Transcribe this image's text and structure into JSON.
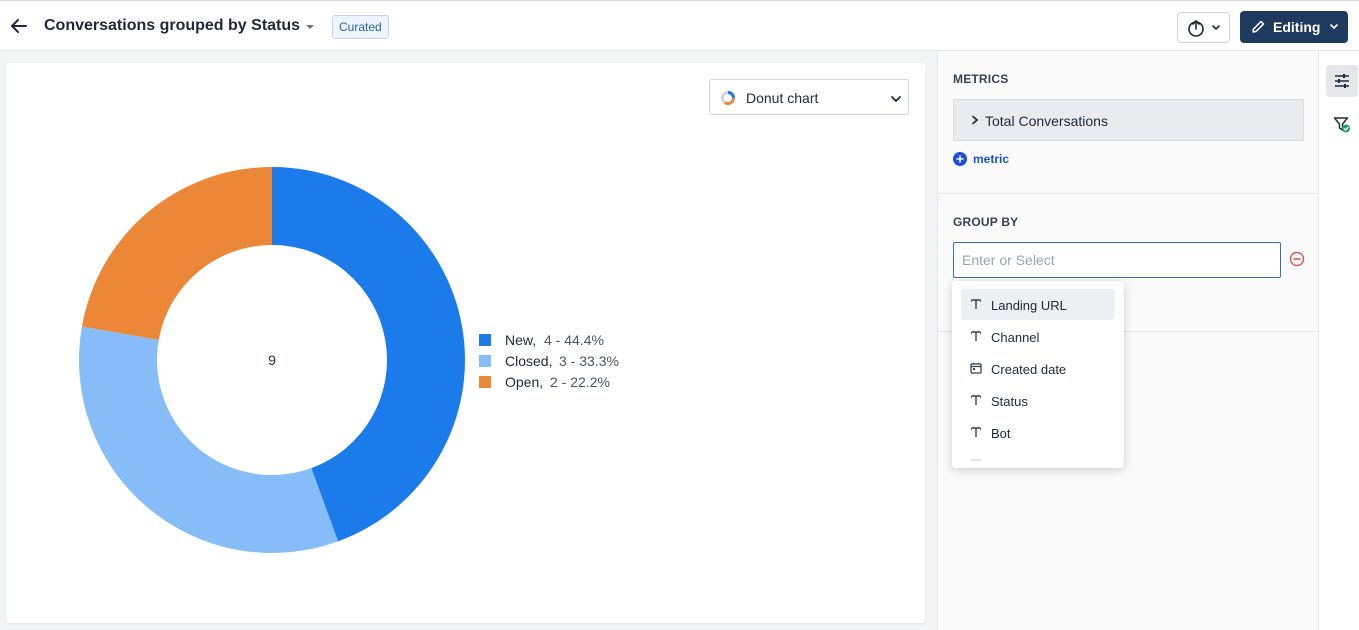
{
  "header": {
    "title": "Conversations grouped by Status",
    "badge": "Curated",
    "editing_label": "Editing"
  },
  "chart_type_selector": {
    "label": "Donut chart"
  },
  "chart_data": {
    "type": "donut",
    "center_label": "9",
    "total": 9,
    "series": [
      {
        "name": "New",
        "value": 4,
        "detail": "4 - 44.4%",
        "color": "#1b7beb"
      },
      {
        "name": "Closed",
        "value": 3,
        "detail": "3 - 33.3%",
        "color": "#86bdf9"
      },
      {
        "name": "Open",
        "value": 2,
        "detail": "2 - 22.2%",
        "color": "#ed8738"
      }
    ],
    "legend_position": "right"
  },
  "panel": {
    "metrics_label": "METRICS",
    "metric_item": "Total Conversations",
    "add_metric_label": "metric",
    "group_by_label": "GROUP BY",
    "group_by_placeholder": "Enter or Select",
    "group_by_value": ""
  },
  "dropdown": {
    "items": [
      {
        "label": "Landing URL",
        "icon": "text-type-icon"
      },
      {
        "label": "Channel",
        "icon": "text-type-icon"
      },
      {
        "label": "Created date",
        "icon": "calendar-icon"
      },
      {
        "label": "Status",
        "icon": "text-type-icon"
      },
      {
        "label": "Bot",
        "icon": "text-type-icon"
      }
    ]
  },
  "colors": {
    "primary_button": "#1e3a5f",
    "accent": "#1d4ed8",
    "remove": "#e05252"
  }
}
